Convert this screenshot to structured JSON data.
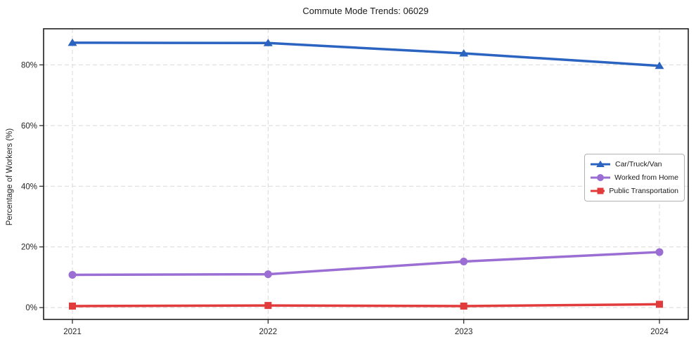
{
  "chart_data": {
    "type": "line",
    "title": "Commute Mode Trends: 06029",
    "xlabel": "",
    "ylabel": "Percentage of Workers (%)",
    "categories": [
      "2021",
      "2022",
      "2023",
      "2024"
    ],
    "series": [
      {
        "name": "Car/Truck/Van",
        "marker": "triangle",
        "color": "#2b63c1",
        "values": [
          87.3,
          87.2,
          83.8,
          79.7
        ]
      },
      {
        "name": "Worked from Home",
        "marker": "circle",
        "color": "#9a6ed2",
        "values": [
          10.8,
          11.0,
          15.2,
          18.3
        ]
      },
      {
        "name": "Public Transportation",
        "marker": "square",
        "color": "#e23b3b",
        "values": [
          0.5,
          0.7,
          0.5,
          1.1
        ]
      }
    ],
    "yticks": [
      0,
      20,
      40,
      60,
      80
    ],
    "ytick_labels": [
      "0%",
      "20%",
      "40%",
      "60%",
      "80%"
    ],
    "ylim": [
      -3.9,
      91.9
    ],
    "grid": "dashed-both-axes",
    "legend_position": "right-middle",
    "colors": {
      "grid": "#d9d9d9",
      "spine": "#1f1f1f",
      "text": "#262626",
      "background": "#ffffff"
    }
  }
}
